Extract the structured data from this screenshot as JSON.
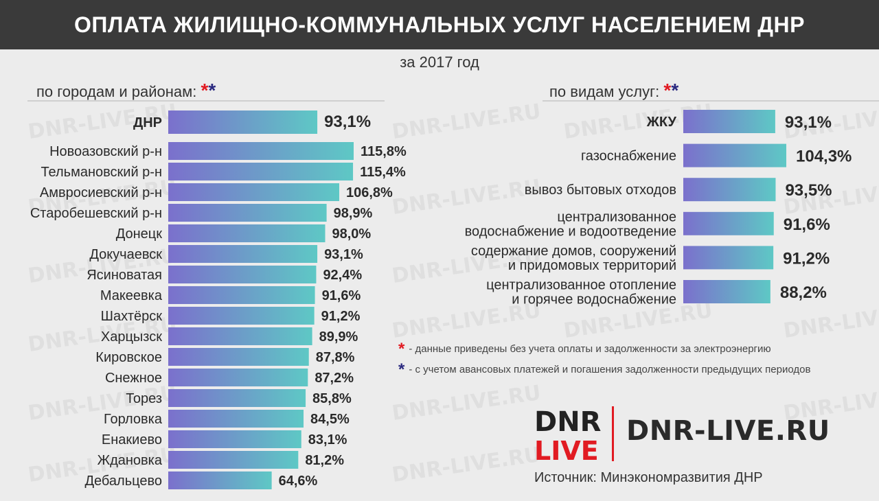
{
  "header": {
    "title": "ОПЛАТА ЖИЛИЩНО-КОММУНАЛЬНЫХ УСЛУГ НАСЕЛЕНИЕМ ДНР"
  },
  "subtitle": "за 2017 год",
  "left_section": {
    "label": "по городам и районам:"
  },
  "right_section": {
    "label": "по видам услуг:"
  },
  "stars": {
    "red": "*",
    "blue": "*"
  },
  "notes": {
    "red": "- данные приведены без учета оплаты и задолженности за электроэнергию",
    "blue": "- с учетом авансовых платежей и погашения задолженности предыдущих периодов"
  },
  "logo": {
    "top": "DNR",
    "bottom": "LIVE"
  },
  "site": "DNR-LIVE.RU",
  "source": "Источник: Минэкономразвития ДНР",
  "watermark": "DNR-LIVE.RU",
  "colors": {
    "purple": "#7b70cc",
    "teal": "#5ec8c5",
    "red": "#e11b22",
    "navy": "#2b2a80",
    "header_bg": "#3a3a3a"
  },
  "chart_data": [
    {
      "type": "bar",
      "orientation": "horizontal",
      "categories": [
        "ДНР",
        "Новоазовский р-н",
        "Тельмановский р-н",
        "Амвросиевский р-н",
        "Старобешевский р-н",
        "Донецк",
        "Докучаевск",
        "Ясиноватая",
        "Макеевка",
        "Шахтёрск",
        "Харцызск",
        "Кировское",
        "Снежное",
        "Торез",
        "Горловка",
        "Енакиево",
        "Ждановка",
        "Дебальцево"
      ],
      "values": [
        93.1,
        115.8,
        115.4,
        106.8,
        98.9,
        98.0,
        93.1,
        92.4,
        91.6,
        91.2,
        89.9,
        87.8,
        87.2,
        85.8,
        84.5,
        83.1,
        81.2,
        64.6
      ],
      "labels": [
        "93,1%",
        "115,8%",
        "115,4%",
        "106,8%",
        "98,9%",
        "98,0%",
        "93,1%",
        "92,4%",
        "91,6%",
        "91,2%",
        "89,9%",
        "87,8%",
        "87,2%",
        "85,8%",
        "84,5%",
        "83,1%",
        "81,2%",
        "64,6%"
      ]
    },
    {
      "type": "bar",
      "orientation": "horizontal",
      "categories": [
        [
          "ЖКУ"
        ],
        [
          "газоснабжение"
        ],
        [
          "вывоз бытовых отходов"
        ],
        [
          "централизованное",
          "водоснабжение и водоотведение"
        ],
        [
          "содержание домов, сооружений",
          "и придомовых территорий"
        ],
        [
          "централизованное отопление",
          "и горячее водоснабжение"
        ]
      ],
      "values": [
        93.1,
        104.3,
        93.5,
        91.6,
        91.2,
        88.2
      ],
      "labels": [
        "93,1%",
        "104,3%",
        "93,5%",
        "91,6%",
        "91,2%",
        "88,2%"
      ]
    }
  ]
}
